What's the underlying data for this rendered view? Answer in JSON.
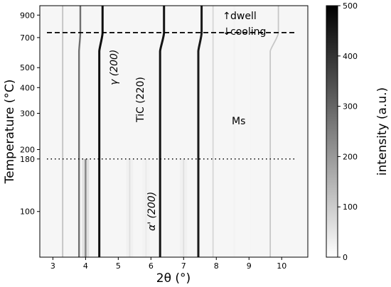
{
  "chart_data": {
    "type": "heatmap",
    "title": "",
    "xlabel": "2θ (°)",
    "ylabel": "Temperature (°C)",
    "x_scale": "linear",
    "y_scale": "log",
    "xlim": [
      2.6,
      10.8
    ],
    "ylim": [
      60,
      1000
    ],
    "x_ticks": [
      3,
      4,
      5,
      6,
      7,
      8,
      9,
      10
    ],
    "y_ticks": [
      100,
      180,
      200,
      300,
      400,
      500,
      700,
      900
    ],
    "colorbar": {
      "label": "intensity (a.u.)",
      "range": [
        0,
        500
      ],
      "ticks": [
        0,
        100,
        200,
        300,
        400,
        500
      ],
      "colormap": "gray_r"
    },
    "reference_lines": [
      {
        "temperature": 740,
        "style": "dashed",
        "label_above": "dwell",
        "label_below": "cooling"
      },
      {
        "temperature": 180,
        "style": "dotted",
        "label": "Ms"
      }
    ],
    "peak_labels": [
      {
        "text": "γ (200)",
        "x": 4.78,
        "y": 310
      },
      {
        "text": "TiC (220)",
        "x": 5.5,
        "y": 200
      },
      {
        "text": "α' (200)",
        "x": 5.9,
        "y": 78
      }
    ],
    "peaks": [
      {
        "x": 3.3,
        "intensity": 120
      },
      {
        "x": 3.84,
        "intensity": 280,
        "shift_to": 3.8
      },
      {
        "x": 4.0,
        "intensity": 240,
        "from_temp": 180
      },
      {
        "x": 4.52,
        "intensity": 470,
        "shift_to": 4.42
      },
      {
        "x": 5.35,
        "intensity": 60,
        "from_temp": 180
      },
      {
        "x": 5.85,
        "intensity": 40,
        "from_temp": 180
      },
      {
        "x": 6.4,
        "intensity": 460,
        "shift_to": 6.28
      },
      {
        "x": 7.0,
        "intensity": 60,
        "from_temp": 180
      },
      {
        "x": 7.55,
        "intensity": 450,
        "shift_to": 7.45
      },
      {
        "x": 7.9,
        "intensity": 80
      },
      {
        "x": 8.55,
        "intensity": 25
      },
      {
        "x": 9.05,
        "intensity": 20
      },
      {
        "x": 9.9,
        "intensity": 110,
        "shift_to": 9.65
      }
    ]
  }
}
